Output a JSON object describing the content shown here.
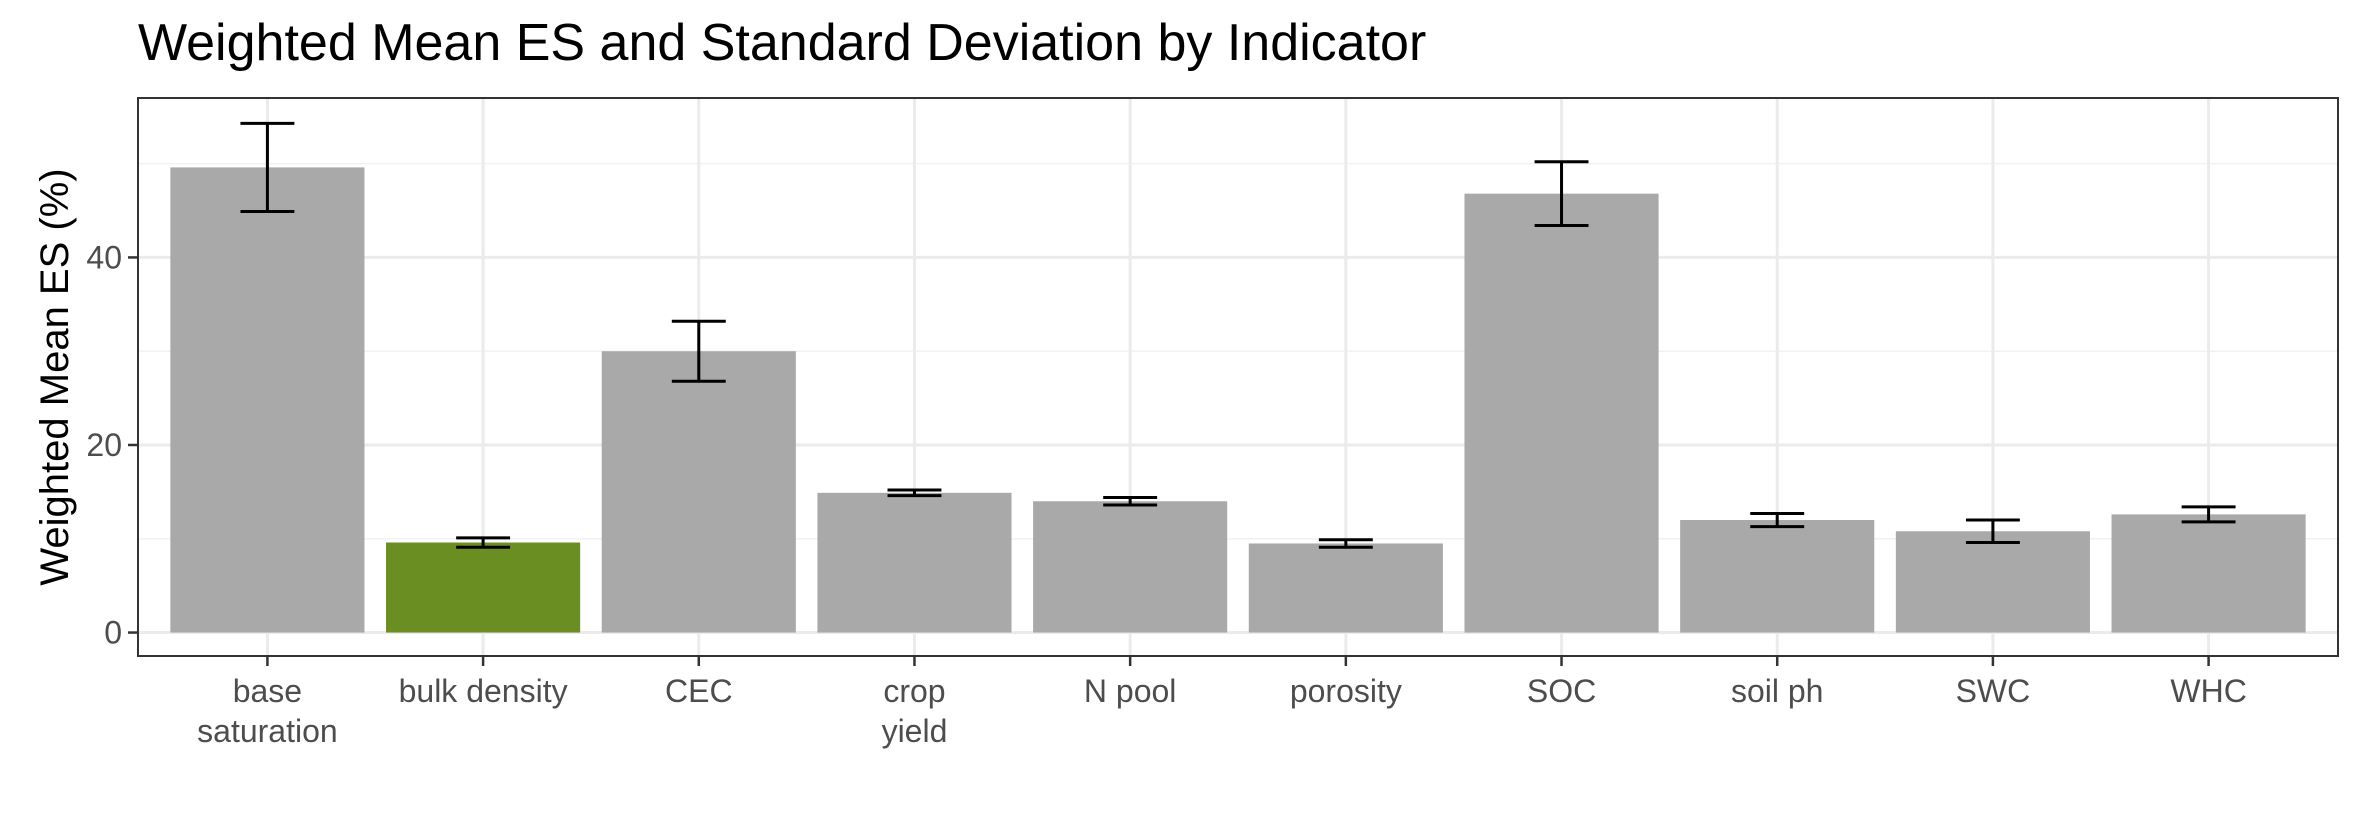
{
  "chart_data": {
    "type": "bar",
    "title": "Weighted Mean ES and Standard Deviation by Indicator",
    "xlabel": "",
    "ylabel": "Weighted Mean ES (%)",
    "ylim": [
      -2.5,
      57
    ],
    "yticks": [
      0,
      20,
      40
    ],
    "grid": true,
    "legend": "none",
    "categories": [
      "base\nsaturation",
      "bulk density",
      "CEC",
      "crop\nyield",
      "N pool",
      "porosity",
      "SOC",
      "soil ph",
      "SWC",
      "WHC"
    ],
    "series": [
      {
        "values": [
          49.6,
          9.6,
          30.0,
          14.9,
          14.0,
          9.5,
          46.8,
          12.0,
          10.8,
          12.6
        ],
        "sd": [
          4.7,
          0.5,
          3.2,
          0.3,
          0.4,
          0.4,
          3.4,
          0.7,
          1.2,
          0.8
        ],
        "colors": [
          "#a9a9a9",
          "#6b8e23",
          "#a9a9a9",
          "#a9a9a9",
          "#a9a9a9",
          "#a9a9a9",
          "#a9a9a9",
          "#a9a9a9",
          "#a9a9a9",
          "#a9a9a9"
        ]
      }
    ]
  }
}
